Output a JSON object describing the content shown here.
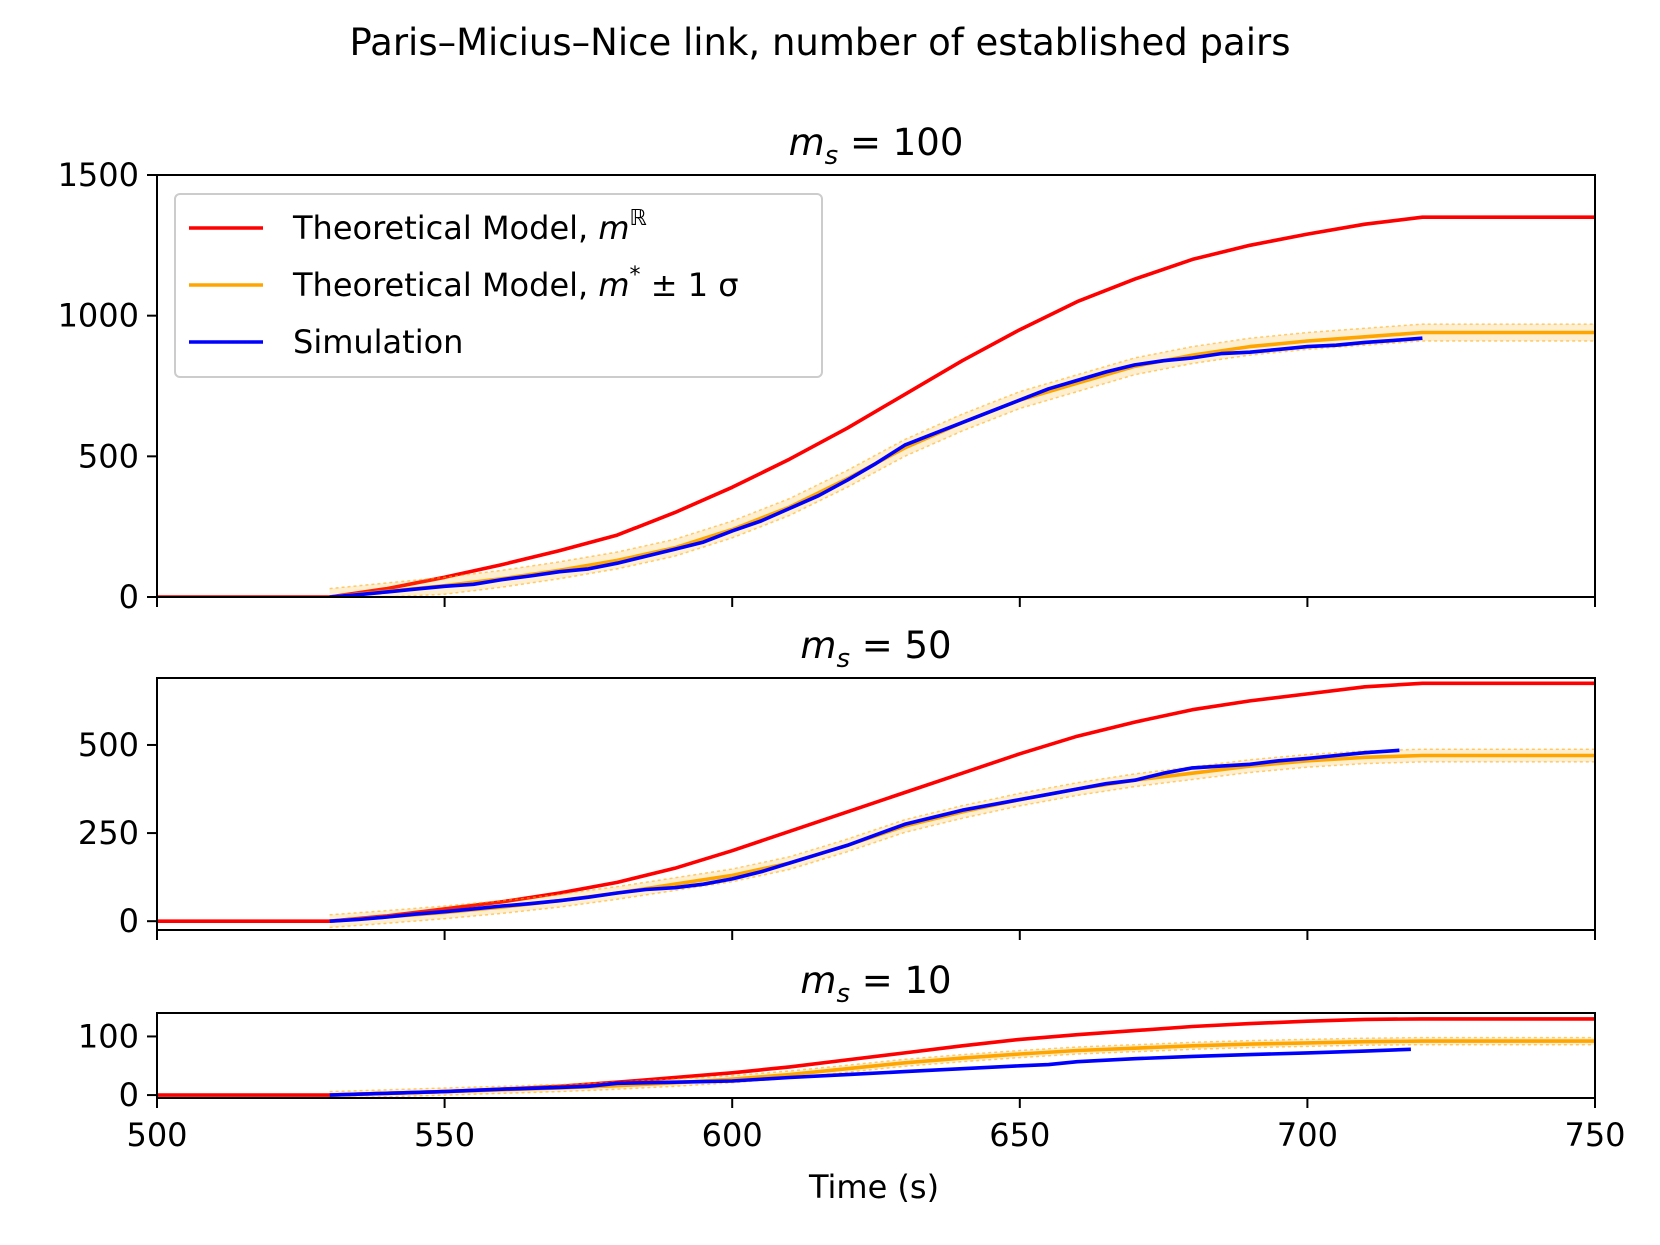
{
  "figure": {
    "suptitle": "Paris–Micius–Nice link, number of established pairs",
    "xlabel": "Time (s)"
  },
  "colors": {
    "theory_r": "#ff0000",
    "theory_star": "#ffa500",
    "simulation": "#0000ff"
  },
  "legend": {
    "entries": [
      {
        "key": "theory_r",
        "prefix": "Theoretical Model, ",
        "math": "m",
        "sup": "ℝ",
        "suffix": ""
      },
      {
        "key": "theory_star",
        "prefix": "Theoretical Model, ",
        "math": "m",
        "sup": "*",
        "suffix": " ± 1 σ"
      },
      {
        "key": "simulation",
        "prefix": "Simulation",
        "math": "",
        "sup": "",
        "suffix": ""
      }
    ]
  },
  "chart_data": [
    {
      "type": "line",
      "title_math": "m",
      "title_sub": "s",
      "title_rest": " = 100",
      "xlim": [
        500,
        750
      ],
      "ylim": [
        0,
        1500
      ],
      "xticks": [
        500,
        550,
        600,
        650,
        700,
        750
      ],
      "yticks": [
        0,
        500,
        1000,
        1500
      ],
      "ytick_labels": [
        "0",
        "500",
        "1000",
        "1500"
      ],
      "show_xtick_labels": false,
      "legend": "top-left",
      "series": [
        {
          "key": "theory_r",
          "name": "Theoretical Model, mℝ",
          "x": [
            500,
            530,
            540,
            550,
            560,
            570,
            580,
            590,
            600,
            610,
            620,
            630,
            640,
            650,
            660,
            670,
            680,
            690,
            700,
            710,
            720,
            750
          ],
          "y": [
            0,
            0,
            30,
            70,
            115,
            165,
            220,
            300,
            390,
            490,
            600,
            720,
            840,
            950,
            1050,
            1130,
            1200,
            1250,
            1290,
            1325,
            1350,
            1350
          ]
        },
        {
          "key": "theory_star",
          "name": "Theoretical Model, m* ± 1 σ",
          "band": 30,
          "x": [
            530,
            540,
            550,
            560,
            570,
            580,
            590,
            600,
            610,
            620,
            630,
            640,
            650,
            660,
            670,
            680,
            690,
            700,
            710,
            720,
            750
          ],
          "y": [
            0,
            20,
            40,
            65,
            95,
            130,
            175,
            240,
            320,
            420,
            530,
            620,
            700,
            760,
            820,
            860,
            890,
            910,
            925,
            940,
            940
          ]
        },
        {
          "key": "simulation",
          "name": "Simulation",
          "x": [
            530,
            535,
            540,
            545,
            550,
            555,
            560,
            565,
            570,
            575,
            580,
            585,
            590,
            595,
            600,
            605,
            610,
            615,
            620,
            625,
            630,
            635,
            640,
            645,
            650,
            655,
            660,
            665,
            670,
            675,
            680,
            685,
            690,
            695,
            700,
            705,
            710,
            715,
            720
          ],
          "y": [
            0,
            8,
            18,
            28,
            38,
            45,
            62,
            75,
            90,
            100,
            120,
            145,
            170,
            195,
            235,
            270,
            315,
            360,
            415,
            475,
            540,
            580,
            620,
            660,
            700,
            740,
            770,
            800,
            825,
            840,
            850,
            865,
            870,
            880,
            890,
            895,
            905,
            912,
            920
          ]
        }
      ]
    },
    {
      "type": "line",
      "title_math": "m",
      "title_sub": "s",
      "title_rest": " = 50",
      "xlim": [
        500,
        750
      ],
      "ylim": [
        -25,
        690
      ],
      "xticks": [
        500,
        550,
        600,
        650,
        700,
        750
      ],
      "yticks": [
        0,
        250,
        500
      ],
      "ytick_labels": [
        "0",
        "250",
        "500"
      ],
      "show_xtick_labels": false,
      "series": [
        {
          "key": "theory_r",
          "name": "Theoretical Model, mℝ",
          "x": [
            500,
            530,
            540,
            550,
            560,
            570,
            580,
            590,
            600,
            610,
            620,
            630,
            640,
            650,
            660,
            670,
            680,
            690,
            700,
            710,
            720,
            750
          ],
          "y": [
            0,
            0,
            15,
            35,
            55,
            80,
            110,
            150,
            200,
            255,
            310,
            365,
            420,
            475,
            525,
            565,
            600,
            625,
            645,
            665,
            675,
            675
          ]
        },
        {
          "key": "theory_star",
          "name": "Theoretical Model, m* ± 1 σ",
          "band": 18,
          "x": [
            530,
            540,
            550,
            560,
            570,
            580,
            590,
            600,
            610,
            620,
            630,
            640,
            650,
            660,
            670,
            680,
            690,
            700,
            710,
            720,
            750
          ],
          "y": [
            0,
            12,
            25,
            40,
            58,
            80,
            105,
            130,
            165,
            215,
            270,
            310,
            345,
            375,
            400,
            420,
            440,
            455,
            465,
            470,
            470
          ]
        },
        {
          "key": "simulation",
          "name": "Simulation",
          "x": [
            530,
            535,
            540,
            545,
            550,
            555,
            560,
            565,
            570,
            575,
            580,
            585,
            590,
            595,
            600,
            605,
            610,
            615,
            620,
            625,
            630,
            635,
            640,
            645,
            650,
            655,
            660,
            665,
            670,
            675,
            680,
            685,
            690,
            695,
            700,
            705,
            710,
            716
          ],
          "y": [
            0,
            5,
            12,
            20,
            27,
            35,
            43,
            50,
            58,
            68,
            80,
            90,
            95,
            105,
            120,
            140,
            165,
            190,
            215,
            245,
            275,
            295,
            315,
            330,
            345,
            360,
            375,
            390,
            400,
            420,
            435,
            440,
            445,
            455,
            462,
            470,
            478,
            485
          ]
        }
      ]
    },
    {
      "type": "line",
      "title_math": "m",
      "title_sub": "s",
      "title_rest": " = 10",
      "xlim": [
        500,
        750
      ],
      "ylim": [
        -5,
        140
      ],
      "xticks": [
        500,
        550,
        600,
        650,
        700,
        750
      ],
      "xtick_labels": [
        "500",
        "550",
        "600",
        "650",
        "700",
        "750"
      ],
      "yticks": [
        0,
        100
      ],
      "ytick_labels": [
        "0",
        "100"
      ],
      "show_xtick_labels": true,
      "series": [
        {
          "key": "theory_r",
          "name": "Theoretical Model, mℝ",
          "x": [
            500,
            530,
            540,
            550,
            560,
            570,
            580,
            590,
            600,
            610,
            620,
            630,
            640,
            650,
            660,
            670,
            680,
            690,
            700,
            710,
            720,
            750
          ],
          "y": [
            0,
            0,
            3,
            6,
            10,
            15,
            22,
            30,
            38,
            48,
            60,
            72,
            84,
            95,
            103,
            110,
            117,
            122,
            126,
            129,
            130,
            130
          ]
        },
        {
          "key": "theory_star",
          "name": "Theoretical Model, m* ± 1 σ",
          "band": 6,
          "x": [
            530,
            540,
            550,
            560,
            570,
            580,
            590,
            600,
            610,
            620,
            630,
            640,
            650,
            660,
            670,
            680,
            690,
            700,
            710,
            720,
            750
          ],
          "y": [
            0,
            3,
            6,
            9,
            12,
            16,
            21,
            27,
            35,
            45,
            55,
            63,
            70,
            76,
            80,
            84,
            87,
            89,
            91,
            92,
            92
          ]
        },
        {
          "key": "simulation",
          "name": "Simulation",
          "x": [
            530,
            540,
            550,
            560,
            570,
            575,
            580,
            590,
            600,
            610,
            620,
            630,
            640,
            650,
            655,
            660,
            670,
            680,
            690,
            700,
            710,
            718
          ],
          "y": [
            0,
            3,
            6,
            10,
            13,
            15,
            20,
            22,
            24,
            30,
            35,
            40,
            45,
            50,
            52,
            57,
            62,
            66,
            69,
            72,
            75,
            78
          ]
        }
      ]
    }
  ]
}
